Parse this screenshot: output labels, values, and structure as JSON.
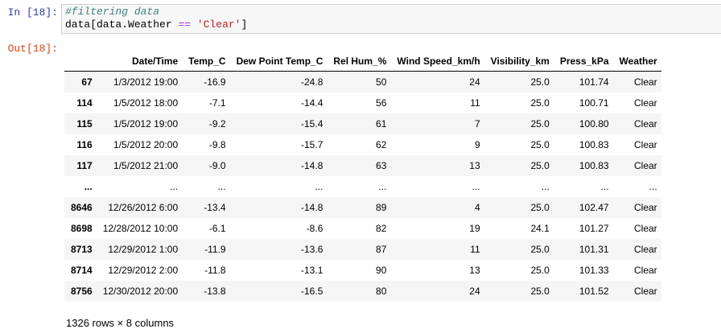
{
  "input_prompt": "In [18]:",
  "output_prompt": "Out[18]:",
  "code": {
    "comment": "#filtering data",
    "line2_prefix": "data[data.Weather ",
    "line2_op": "==",
    "line2_space": " ",
    "line2_str": "'Clear'",
    "line2_suffix": "]"
  },
  "table": {
    "columns": [
      "",
      "Date/Time",
      "Temp_C",
      "Dew Point Temp_C",
      "Rel Hum_%",
      "Wind Speed_km/h",
      "Visibility_km",
      "Press_kPa",
      "Weather"
    ],
    "rows": [
      [
        "67",
        "1/3/2012 19:00",
        "-16.9",
        "-24.8",
        "50",
        "24",
        "25.0",
        "101.74",
        "Clear"
      ],
      [
        "114",
        "1/5/2012 18:00",
        "-7.1",
        "-14.4",
        "56",
        "11",
        "25.0",
        "100.71",
        "Clear"
      ],
      [
        "115",
        "1/5/2012 19:00",
        "-9.2",
        "-15.4",
        "61",
        "7",
        "25.0",
        "100.80",
        "Clear"
      ],
      [
        "116",
        "1/5/2012 20:00",
        "-9.8",
        "-15.7",
        "62",
        "9",
        "25.0",
        "100.83",
        "Clear"
      ],
      [
        "117",
        "1/5/2012 21:00",
        "-9.0",
        "-14.8",
        "63",
        "13",
        "25.0",
        "100.83",
        "Clear"
      ],
      [
        "...",
        "...",
        "...",
        "...",
        "...",
        "...",
        "...",
        "...",
        "..."
      ],
      [
        "8646",
        "12/26/2012 6:00",
        "-13.4",
        "-14.8",
        "89",
        "4",
        "25.0",
        "102.47",
        "Clear"
      ],
      [
        "8698",
        "12/28/2012 10:00",
        "-6.1",
        "-8.6",
        "82",
        "19",
        "24.1",
        "101.27",
        "Clear"
      ],
      [
        "8713",
        "12/29/2012 1:00",
        "-11.9",
        "-13.6",
        "87",
        "11",
        "25.0",
        "101.31",
        "Clear"
      ],
      [
        "8714",
        "12/29/2012 2:00",
        "-11.8",
        "-13.1",
        "90",
        "13",
        "25.0",
        "101.33",
        "Clear"
      ],
      [
        "8756",
        "12/30/2012 20:00",
        "-13.8",
        "-16.5",
        "80",
        "24",
        "25.0",
        "101.52",
        "Clear"
      ]
    ]
  },
  "summary": "1326 rows × 8 columns"
}
